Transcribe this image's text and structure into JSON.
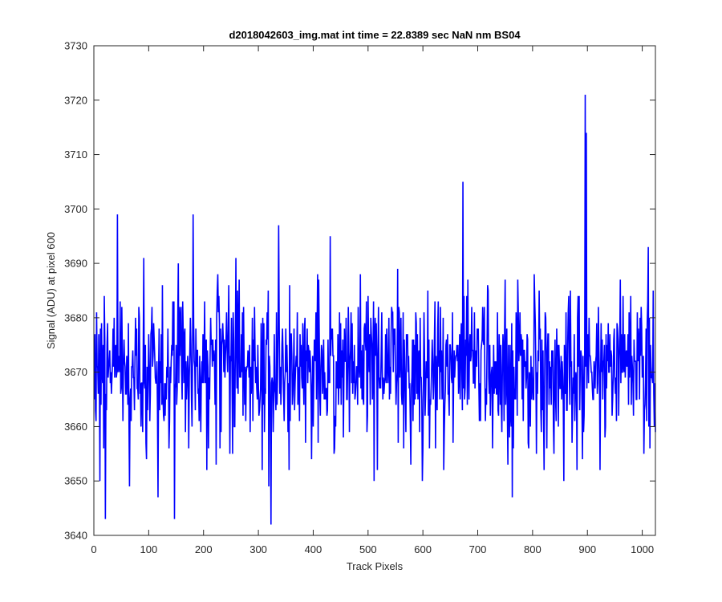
{
  "chart_data": {
    "type": "line",
    "title": "d2018042603_img.mat int time = 22.8389 sec  NaN nm BS04",
    "xlabel": "Track Pixels",
    "ylabel": "Signal (ADU) at pixel 600",
    "xlim": [
      0,
      1024
    ],
    "ylim": [
      3640,
      3730
    ],
    "xticks": [
      0,
      100,
      200,
      300,
      400,
      500,
      600,
      700,
      800,
      900,
      1000
    ],
    "yticks": [
      3640,
      3650,
      3660,
      3670,
      3680,
      3690,
      3700,
      3710,
      3720,
      3730
    ],
    "grid": false,
    "line_color": "#0000ff",
    "series": [
      {
        "n_points": 1024,
        "mean": 3671,
        "std": 7,
        "peaks": [
          {
            "x": 4,
            "y": 3681
          },
          {
            "x": 10,
            "y": 3650
          },
          {
            "x": 18,
            "y": 3684
          },
          {
            "x": 20,
            "y": 3643
          },
          {
            "x": 42,
            "y": 3699
          },
          {
            "x": 64,
            "y": 3649
          },
          {
            "x": 90,
            "y": 3691
          },
          {
            "x": 116,
            "y": 3647
          },
          {
            "x": 146,
            "y": 3643
          },
          {
            "x": 180,
            "y": 3699
          },
          {
            "x": 258,
            "y": 3691
          },
          {
            "x": 318,
            "y": 3649
          },
          {
            "x": 322,
            "y": 3642
          },
          {
            "x": 336,
            "y": 3697
          },
          {
            "x": 430,
            "y": 3695
          },
          {
            "x": 510,
            "y": 3650
          },
          {
            "x": 598,
            "y": 3650
          },
          {
            "x": 672,
            "y": 3705
          },
          {
            "x": 762,
            "y": 3647
          },
          {
            "x": 856,
            "y": 3650
          },
          {
            "x": 880,
            "y": 3652
          },
          {
            "x": 895,
            "y": 3721
          },
          {
            "x": 897,
            "y": 3714
          },
          {
            "x": 1010,
            "y": 3693
          }
        ]
      }
    ]
  }
}
